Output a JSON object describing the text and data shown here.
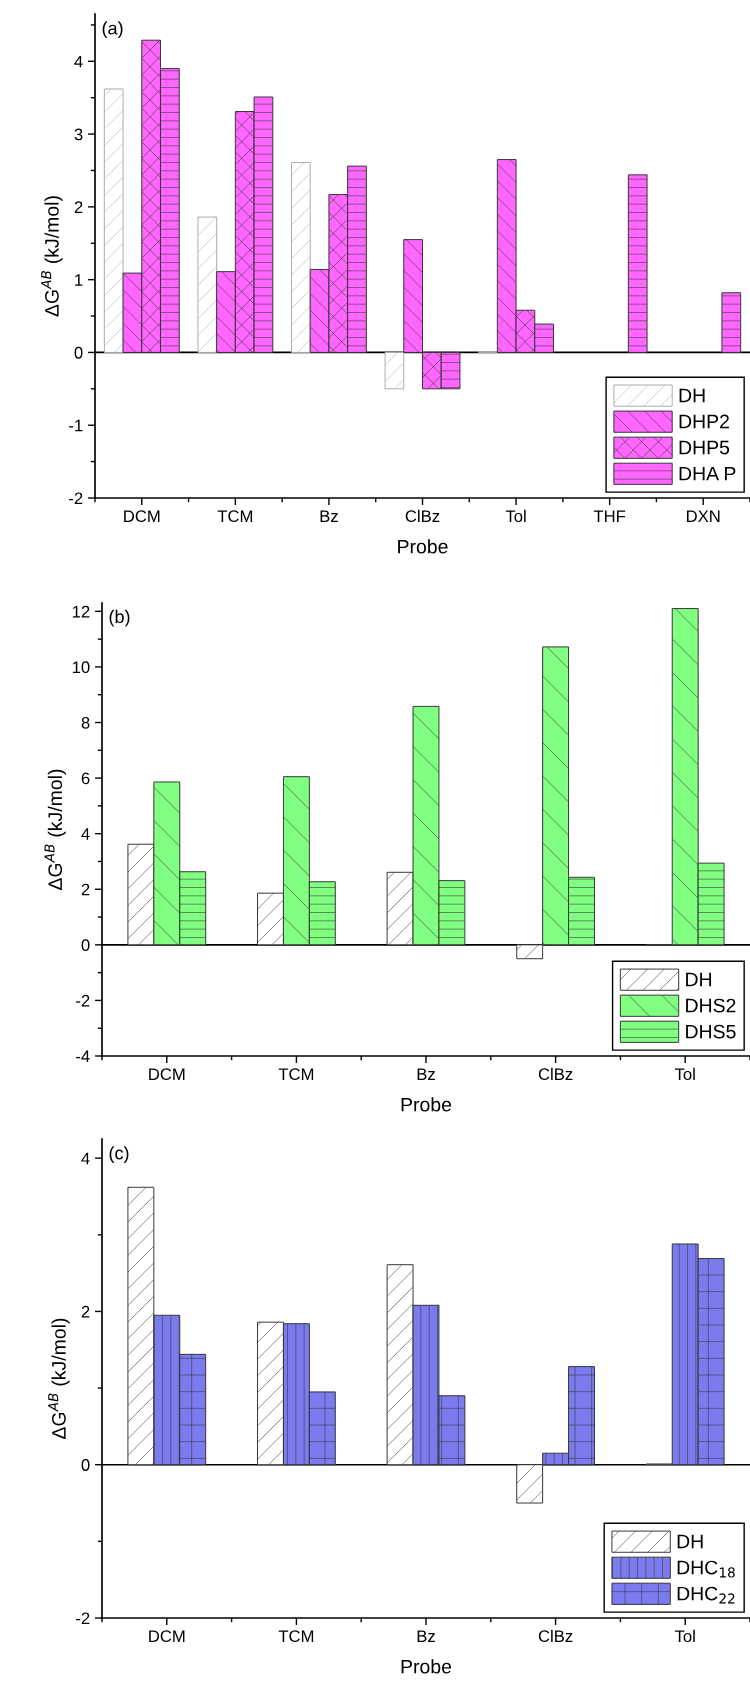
{
  "chart_data": [
    {
      "type": "bar",
      "title": "(a)",
      "xlabel": "Probe",
      "ylabel": "ΔG$^{AB}$ (kJ/mol)",
      "categories": [
        "DCM",
        "TCM",
        "Bz",
        "ClBz",
        "Tol",
        "THF",
        "DXN"
      ],
      "series": [
        {
          "name": "DH",
          "color": "#ffffff",
          "values": [
            3.62,
            1.86,
            2.61,
            -0.5,
            0.01,
            null,
            null
          ]
        },
        {
          "name": "DHP2",
          "color": "#ff66ff",
          "values": [
            1.09,
            1.11,
            1.14,
            1.55,
            2.65,
            null,
            null
          ]
        },
        {
          "name": "DHP5",
          "color": "#ff66ff",
          "values": [
            4.29,
            3.31,
            2.17,
            -0.5,
            0.58,
            null,
            null
          ]
        },
        {
          "name": "DHA P",
          "color": "#ff66ff",
          "values": [
            3.9,
            3.51,
            2.56,
            -0.5,
            0.39,
            2.44,
            0.82
          ]
        }
      ],
      "ylim": [
        -2,
        4.65
      ],
      "yticks": [
        -2,
        {
          "value": -1.5,
          "label": null
        },
        -1,
        {
          "value": -0.5,
          "label": null
        },
        0,
        {
          "value": 0.5,
          "label": null
        },
        1,
        {
          "value": 1.5,
          "label": null
        },
        2,
        {
          "value": 2.5,
          "label": null
        },
        3,
        {
          "value": 3.5,
          "label": null
        },
        4,
        {
          "value": 4.5,
          "label": null
        }
      ],
      "ref_lines": [
        {
          "axis": "y",
          "value": 0
        }
      ],
      "legend": "bottom right",
      "grid": false
    },
    {
      "type": "bar",
      "title": "(b)",
      "xlabel": "Probe",
      "ylabel": "ΔG$^{AB}$ (kJ/mol)",
      "categories": [
        "DCM",
        "TCM",
        "Bz",
        "ClBz",
        "Tol"
      ],
      "series": [
        {
          "name": "DH",
          "color": "#ffffff",
          "values": [
            3.62,
            1.86,
            2.61,
            -0.5,
            0.01
          ]
        },
        {
          "name": "DHS2",
          "color": "#80ff80",
          "values": [
            5.86,
            6.05,
            8.58,
            10.72,
            12.1
          ]
        },
        {
          "name": "DHS5",
          "color": "#80ff80",
          "values": [
            2.63,
            2.27,
            2.31,
            2.43,
            2.94
          ]
        }
      ],
      "ylim": [
        -4,
        12.3
      ],
      "yticks": [
        -4,
        {
          "value": -3,
          "label": null
        },
        -2,
        {
          "value": -1,
          "label": null
        },
        0,
        {
          "value": 1,
          "label": null
        },
        2,
        {
          "value": 3,
          "label": null
        },
        4,
        {
          "value": 5,
          "label": null
        },
        6,
        {
          "value": 7,
          "label": null
        },
        8,
        {
          "value": 9,
          "label": null
        },
        10,
        {
          "value": 11,
          "label": null
        },
        12
      ],
      "ref_lines": [
        {
          "axis": "y",
          "value": 0
        }
      ],
      "legend": "bottom right",
      "grid": false
    },
    {
      "type": "bar",
      "title": "(c)",
      "xlabel": "Probe",
      "ylabel": "ΔG$^{AB}$ (kJ/mol)",
      "categories": [
        "DCM",
        "TCM",
        "Bz",
        "ClBz",
        "Tol"
      ],
      "series": [
        {
          "name": "DH",
          "color": "#ffffff",
          "values": [
            3.62,
            1.86,
            2.61,
            -0.5,
            0.01
          ]
        },
        {
          "name": "DHC$_{18}$",
          "color": "#7b7bef",
          "values": [
            1.95,
            1.84,
            2.08,
            0.15,
            2.88
          ]
        },
        {
          "name": "DHC$_{22}$",
          "color": "#7b7bef",
          "values": [
            1.44,
            0.95,
            0.9,
            1.28,
            2.69
          ]
        }
      ],
      "ylim": [
        -2,
        4.25
      ],
      "yticks": [
        -2,
        {
          "value": -1,
          "label": null
        },
        0,
        {
          "value": 1,
          "label": null
        },
        2,
        {
          "value": 3,
          "label": null
        },
        4
      ],
      "ref_lines": [
        {
          "axis": "y",
          "value": 0
        }
      ],
      "legend": "bottom right",
      "grid": false
    }
  ]
}
